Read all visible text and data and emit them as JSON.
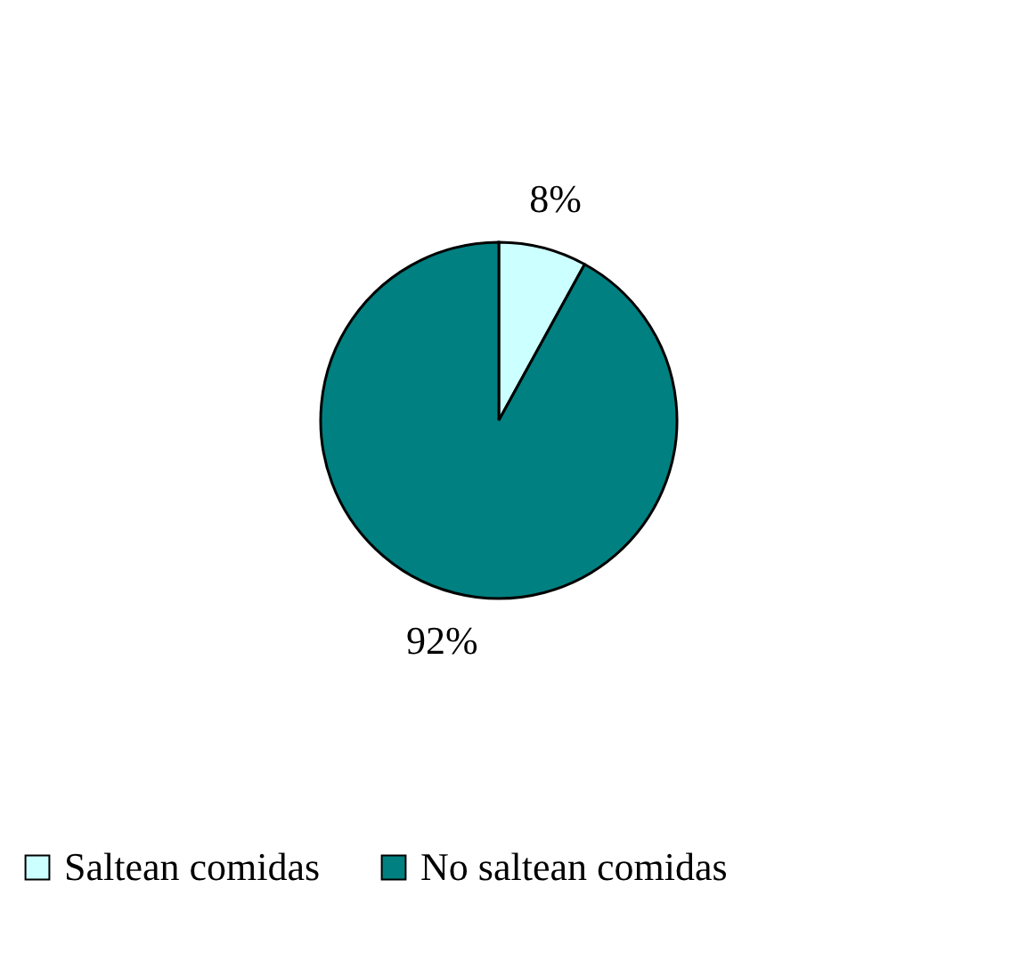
{
  "chart_data": {
    "type": "pie",
    "categories": [
      "Saltean comidas",
      "No saltean comidas"
    ],
    "values": [
      8,
      92
    ],
    "colors": [
      "#ccffff",
      "#008080"
    ],
    "value_labels": [
      "8%",
      "92%"
    ],
    "legend": "bottom"
  }
}
